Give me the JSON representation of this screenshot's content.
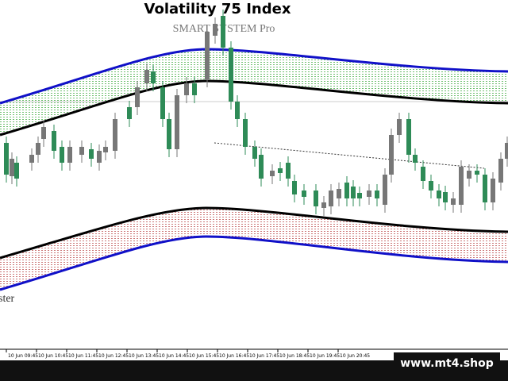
{
  "header": {
    "title": "Volatility 75 Index",
    "subtitle": "SMART SYSTEM Pro"
  },
  "side_label": "ster",
  "x_axis": {
    "labels": [
      "10 Jun 09:45",
      "10 Jun 10:45",
      "10 Jun 11:45",
      "10 Jun 12:45",
      "10 Jun 13:45",
      "10 Jun 14:45",
      "10 Jun 15:45",
      "10 Jun 16:45",
      "10 Jun 17:45",
      "10 Jun 18:45",
      "10 Jun 19:45",
      "10 Jun 20:45"
    ]
  },
  "watermark": "www.mt4.shop"
}
